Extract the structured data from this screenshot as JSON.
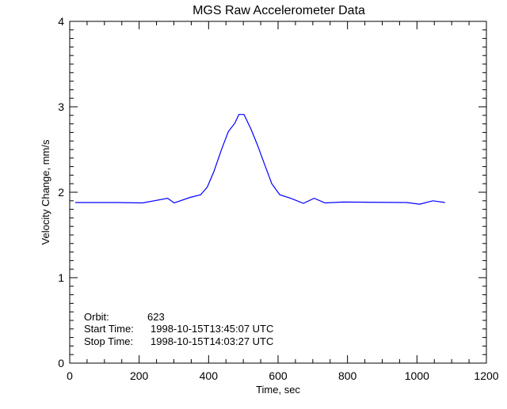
{
  "chart_data": {
    "type": "line",
    "title": "MGS Raw Accelerometer Data",
    "xlabel": "Time, sec",
    "ylabel": "Velocity Change, mm/s",
    "xlim": [
      0,
      1200
    ],
    "ylim": [
      0,
      4
    ],
    "xticks": [
      "0",
      "200",
      "400",
      "600",
      "800",
      "1000",
      "1200"
    ],
    "yticks": [
      "0",
      "1",
      "2",
      "3",
      "4"
    ],
    "grid": false,
    "line_color": "#0000ff",
    "x": [
      16,
      134,
      210,
      282,
      301,
      347,
      377,
      396,
      415,
      438,
      457,
      476,
      487,
      502,
      522,
      541,
      559,
      582,
      605,
      636,
      673,
      704,
      735,
      787,
      970,
      1008,
      1046,
      1081
    ],
    "y": [
      1.88,
      1.88,
      1.875,
      1.93,
      1.875,
      1.94,
      1.97,
      2.06,
      2.24,
      2.51,
      2.71,
      2.81,
      2.91,
      2.91,
      2.74,
      2.55,
      2.35,
      2.1,
      1.97,
      1.93,
      1.87,
      1.93,
      1.875,
      1.885,
      1.88,
      1.86,
      1.9,
      1.88
    ],
    "annotations": [
      {
        "label": "Orbit:",
        "value": "623"
      },
      {
        "label": "Start Time:",
        "value": "1998-10-15T13:45:07 UTC"
      },
      {
        "label": "Stop Time:",
        "value": "1998-10-15T14:03:27 UTC"
      }
    ]
  }
}
